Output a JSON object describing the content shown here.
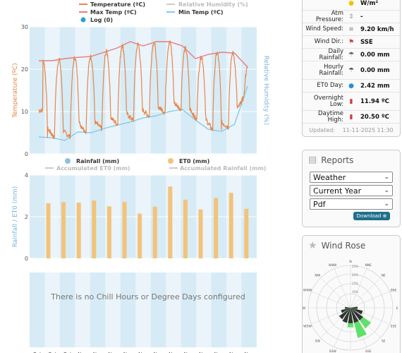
{
  "charts": {
    "weather": {
      "legend": {
        "temperature": "Temperature (ºC)",
        "max_temp": "Max Temp (ºC)",
        "log": "Log (0)",
        "humidity": "Relative Humidity (%)",
        "min_temp": "Min Temp (ºC)"
      },
      "y_left_label": "Temperature (ºC)",
      "y_right_label": "Relative Humidity (%)",
      "y_ticks": [
        "0",
        "10",
        "20",
        "30"
      ]
    },
    "rain": {
      "legend": {
        "rainfall": "Rainfall (mm)",
        "et0": "ET0 (mm)",
        "acc_et0": "Accumulated ET0 (mm)",
        "acc_rain": "Accumulated Rainfall (mm)"
      },
      "y_label": "Rainfall / ET0 (mm)",
      "y_ticks": [
        "0",
        "2",
        "4"
      ]
    },
    "chill": {
      "message": "There is no Chill Hours or Degree Days configured"
    },
    "x_labels": [
      "Oct",
      "Oct",
      "Oct",
      "Nov",
      "Nov",
      "Nov",
      "Nov",
      "Nov",
      "Nov",
      "Nov",
      "Nov",
      "Nov",
      "Nov",
      "Nov",
      "Nov"
    ]
  },
  "chart_data": [
    {
      "type": "line",
      "title": "",
      "xlabel": "",
      "ylabel": "Temperature (ºC)",
      "ylim": [
        0,
        30
      ],
      "series": [
        {
          "name": "Max Temp (ºC)",
          "values": [
            22,
            22,
            22.5,
            22.8,
            23,
            24,
            25,
            26.5,
            25.5,
            26.5,
            26.5,
            25.5,
            22.5,
            23.5,
            24,
            23.8,
            20.5
          ]
        },
        {
          "name": "Min Temp (ºC)",
          "values": [
            4,
            3.8,
            3.2,
            5.2,
            5.0,
            6,
            6.8,
            7.5,
            8.5,
            9.0,
            10,
            10.5,
            8,
            5.8,
            5.3,
            7,
            16
          ]
        }
      ]
    },
    {
      "type": "bar",
      "title": "",
      "xlabel": "",
      "ylabel": "Rainfall / ET0 (mm)",
      "ylim": [
        0,
        4
      ],
      "series": [
        {
          "name": "ET0 (mm)",
          "values": [
            2.65,
            2.7,
            2.68,
            2.78,
            2.5,
            2.72,
            2.15,
            2.48,
            3.45,
            2.82,
            2.35,
            2.9,
            3.15,
            2.38
          ]
        }
      ]
    }
  ],
  "weather": {
    "radiation_unit": "W/m²",
    "rows": [
      {
        "label": "Atm Pressure:",
        "value": "-"
      },
      {
        "label": "Wind Speed:",
        "value": "9.20 km/h"
      },
      {
        "label": "Wind Dir.:",
        "value": "SSE"
      },
      {
        "label": "Daily Rainfall:",
        "value": "0.00 mm"
      },
      {
        "label": "Hourly Rainfall:",
        "value": "0.00 mm"
      },
      {
        "label": "ET0 Day:",
        "value": "2.42 mm"
      },
      {
        "label": "Overnight Low:",
        "value": "11.94 ºC"
      },
      {
        "label": "Daytime High:",
        "value": "20.50 ºC"
      }
    ],
    "updated_label": "Updated:",
    "updated_value": "11-11-2025 11:30"
  },
  "reports": {
    "title": "Reports",
    "selects": [
      "Weather",
      "Current Year",
      "Pdf"
    ],
    "download": "Download"
  },
  "windrose": {
    "title": "Wind Rose",
    "directions": [
      "N",
      "NNE",
      "NE",
      "ENE",
      "E",
      "ESE",
      "SE",
      "SSE",
      "S",
      "SSW",
      "SW",
      "WSW",
      "W",
      "WNW",
      "NW",
      "NNW"
    ],
    "ring_labels": [
      "25%",
      "20%",
      "15%",
      "10%"
    ]
  },
  "colors": {
    "temperature": "#e8854a",
    "max_temp": "#e87a82",
    "min_temp": "#7ecbef",
    "log": "#2aa0d8",
    "humidity": "#cccccc",
    "rainfall": "#8ec1dd",
    "et0": "#f3c37a",
    "band": "#d6ebf5",
    "windrose_calm": "#333333",
    "windrose_wind": "#5ee06a"
  }
}
